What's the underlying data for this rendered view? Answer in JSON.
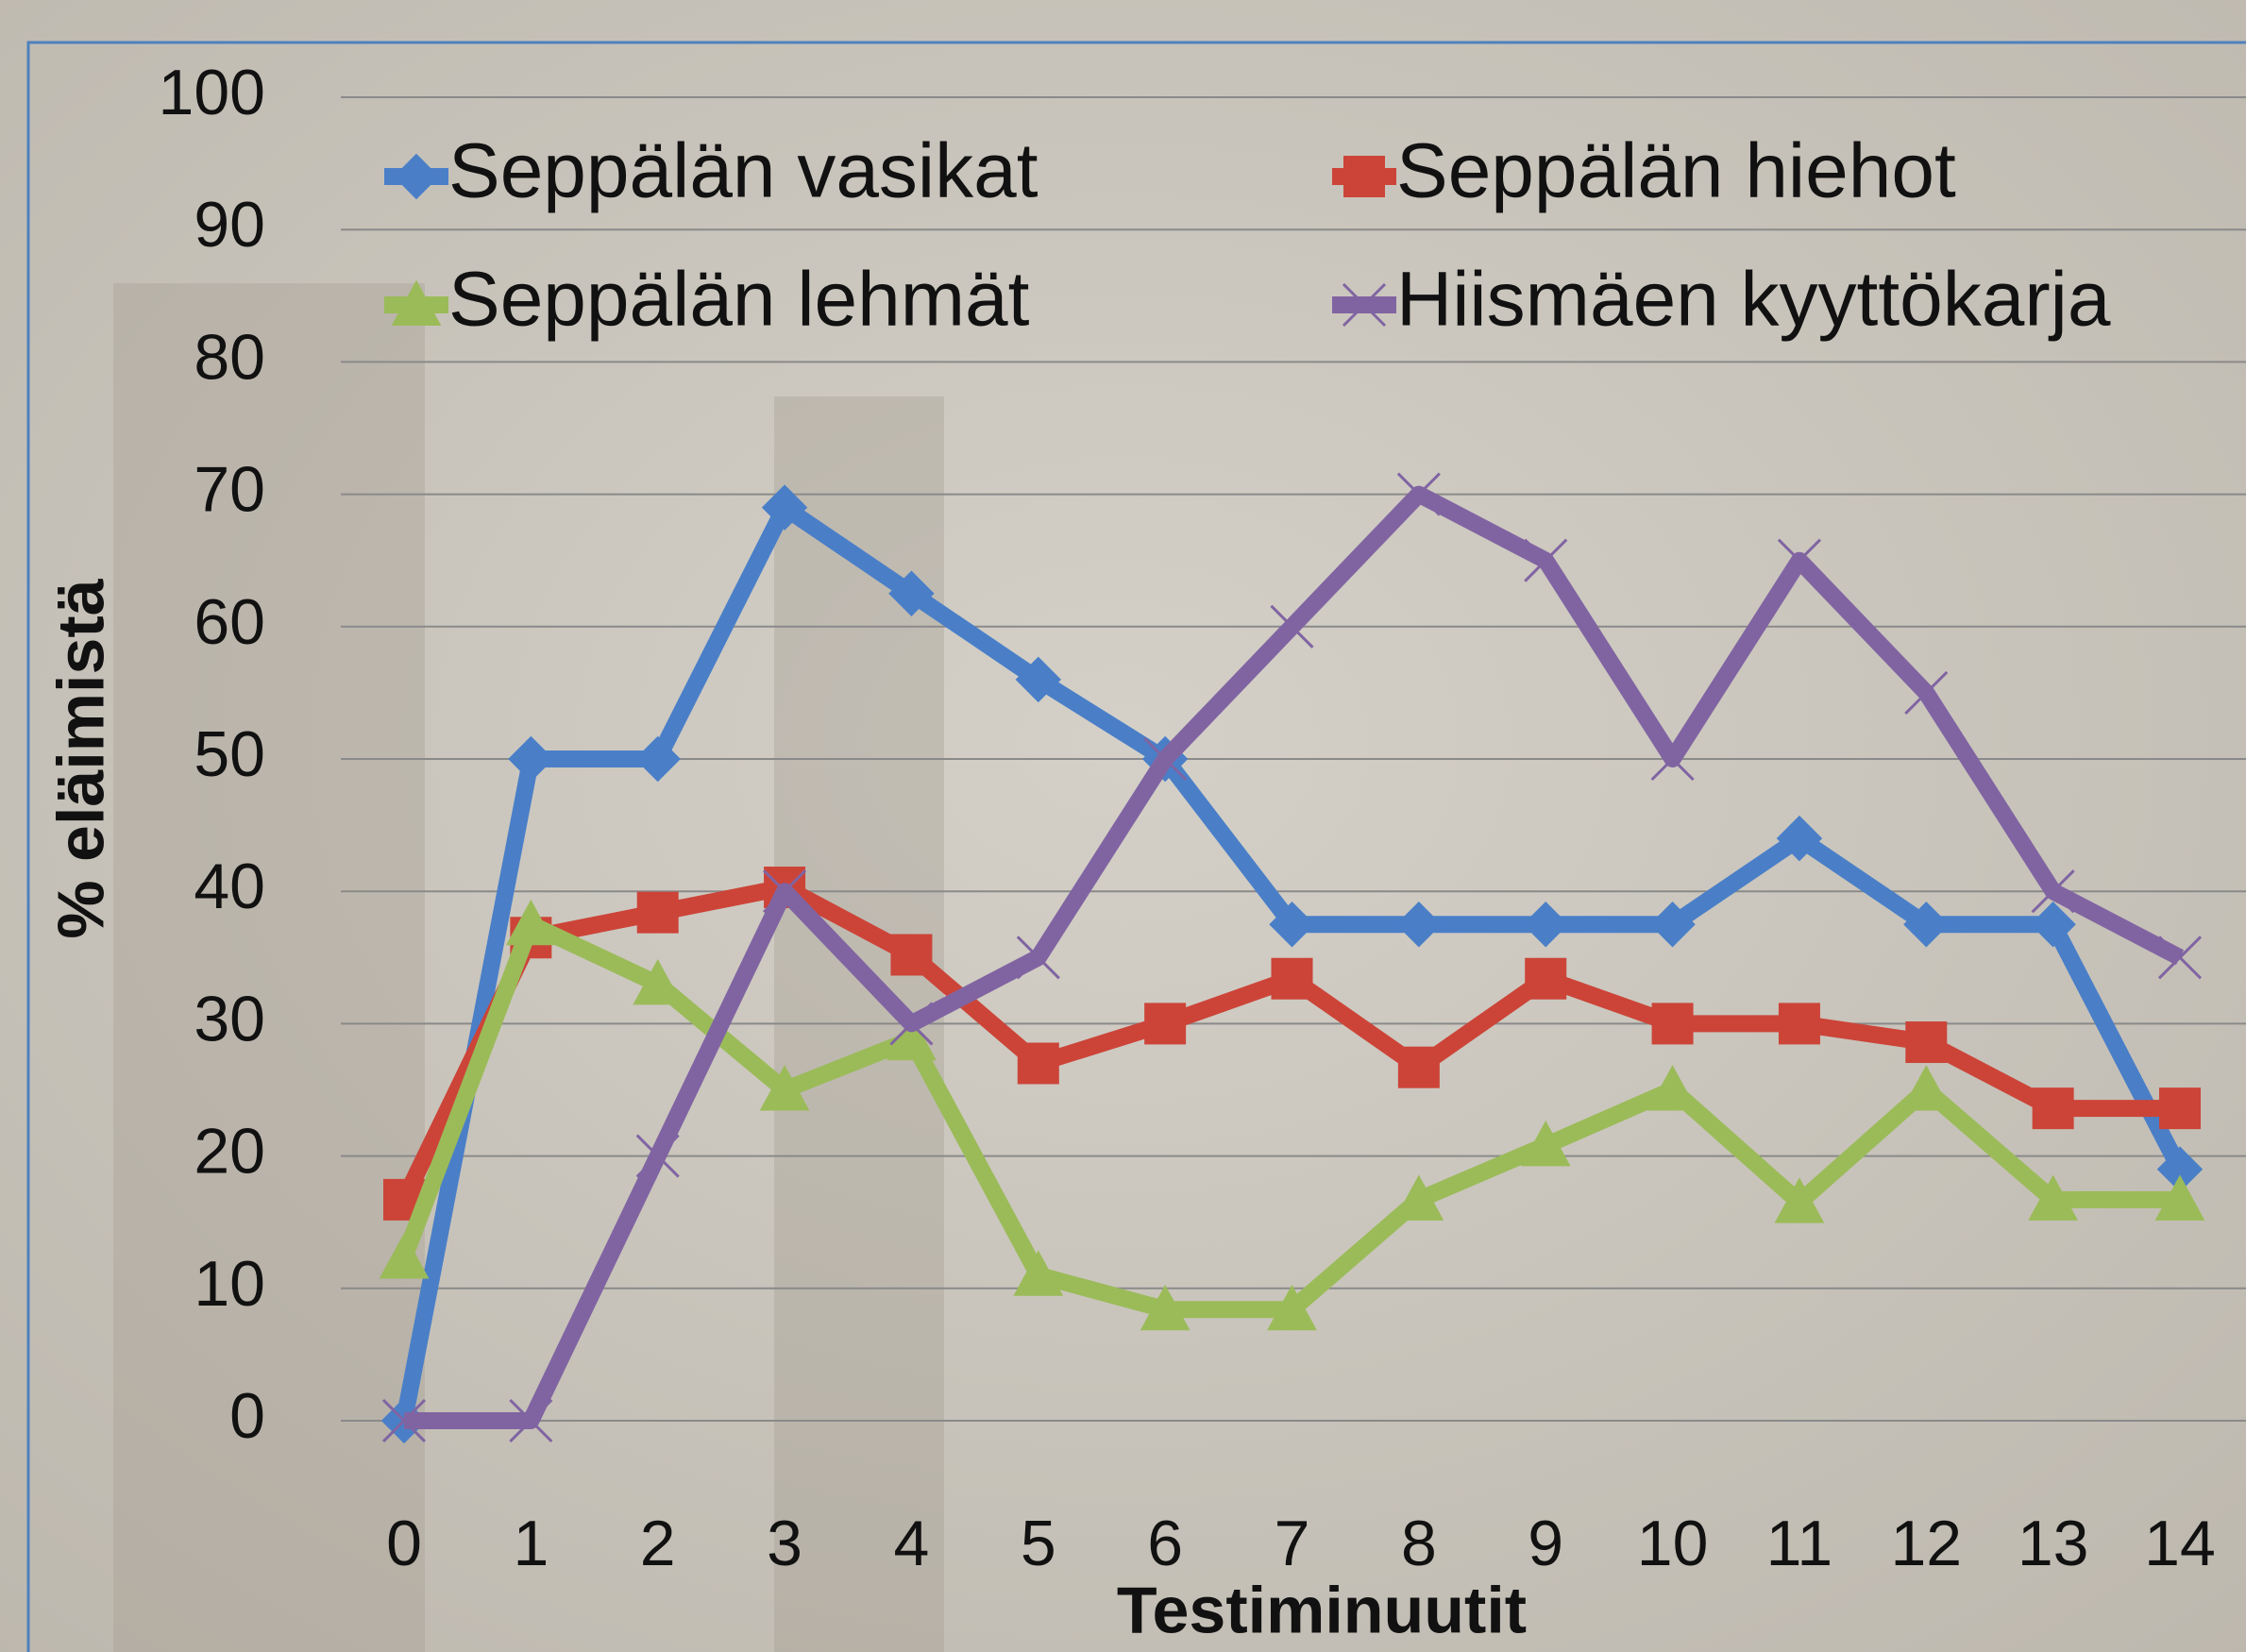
{
  "chart_data": {
    "type": "line",
    "x_label": "Testiminuutit",
    "y_label": "% eläimistä",
    "x": [
      0,
      1,
      2,
      3,
      4,
      5,
      6,
      7,
      8,
      9,
      10,
      11,
      12,
      13,
      14
    ],
    "xlim": [
      0,
      14
    ],
    "xticks": [
      0,
      1,
      2,
      3,
      4,
      5,
      6,
      7,
      8,
      9,
      10,
      11,
      12,
      13,
      14
    ],
    "ylim": [
      0,
      100
    ],
    "yticks": [
      0,
      10,
      20,
      30,
      40,
      50,
      60,
      70,
      80,
      90,
      100
    ],
    "grid": true,
    "legend": "top",
    "series": [
      {
        "name": "Seppälän vasikat",
        "color": "#4a7fc8",
        "marker": "diamond",
        "values": [
          0,
          50,
          50,
          69,
          62.5,
          56,
          50,
          37.5,
          37.5,
          37.5,
          37.5,
          44,
          37.5,
          37.5,
          19
        ]
      },
      {
        "name": "Seppälän hiehot",
        "color": "#cc4438",
        "marker": "square",
        "values": [
          16.7,
          36.5,
          38.4,
          40.3,
          35.2,
          27,
          30,
          33.4,
          26.7,
          33.4,
          30,
          30,
          28.6,
          23.6,
          23.6
        ]
      },
      {
        "name": "Seppälän lehmät",
        "color": "#9bbb59",
        "marker": "triangle",
        "values": [
          12.3,
          37.5,
          33,
          25,
          28.8,
          11,
          8.4,
          8.4,
          16.7,
          20.8,
          25,
          16.5,
          25,
          16.7,
          16.7
        ]
      },
      {
        "name": "Hiismäen kyyttökarja",
        "color": "#8064a2",
        "marker": "cross",
        "values": [
          0,
          0,
          20,
          40,
          30,
          35,
          50,
          60,
          70,
          65,
          50,
          65,
          55,
          40,
          35
        ]
      }
    ]
  }
}
